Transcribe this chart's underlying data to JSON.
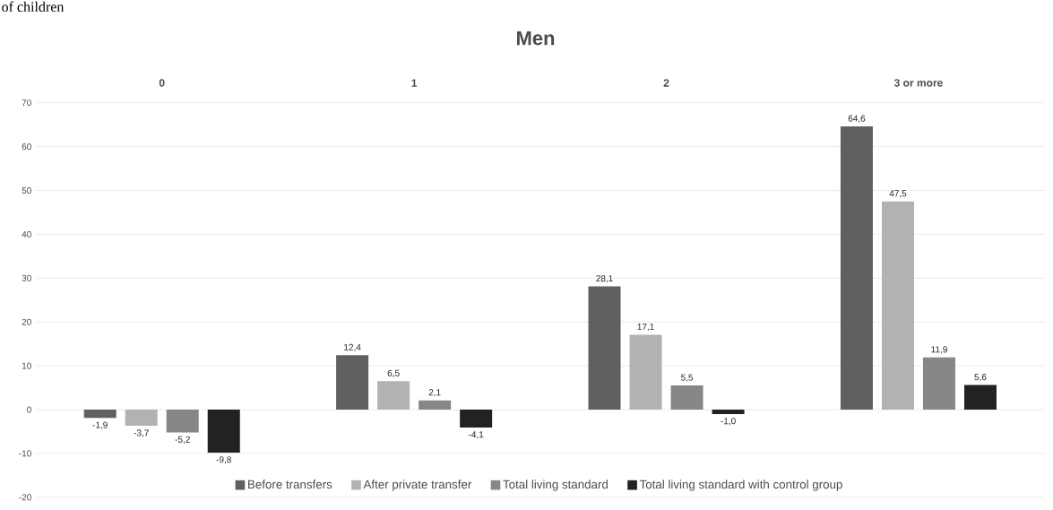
{
  "chart_data": {
    "type": "bar",
    "title": "Men",
    "annotations": [
      "of children"
    ],
    "categories": [
      "0",
      "1",
      "2",
      "3 or more"
    ],
    "series": [
      {
        "name": "Before transfers",
        "color": "#606060",
        "values": [
          -1.9,
          12.4,
          28.1,
          64.6
        ],
        "value_labels": [
          "-1,9",
          "12,4",
          "28,1",
          "64,6"
        ]
      },
      {
        "name": "After private transfer",
        "color": "#b2b2b2",
        "values": [
          -3.7,
          6.5,
          17.1,
          47.5
        ],
        "value_labels": [
          "-3,7",
          "6,5",
          "17,1",
          "47,5"
        ]
      },
      {
        "name": "Total living standard",
        "color": "#878787",
        "values": [
          -5.2,
          2.1,
          5.5,
          11.9
        ],
        "value_labels": [
          "-5,2",
          "2,1",
          "5,5",
          "11,9"
        ]
      },
      {
        "name": "Total living standard with control group",
        "color": "#222222",
        "values": [
          -9.8,
          -4.1,
          -1.0,
          5.6
        ],
        "value_labels": [
          "-9,8",
          "-4,1",
          "-1,0",
          "5,6"
        ]
      }
    ],
    "ylim": [
      -20,
      70
    ],
    "yticks": [
      -20,
      -10,
      0,
      10,
      20,
      30,
      40,
      50,
      60,
      70
    ],
    "grid": "y",
    "legend": "bottom"
  }
}
